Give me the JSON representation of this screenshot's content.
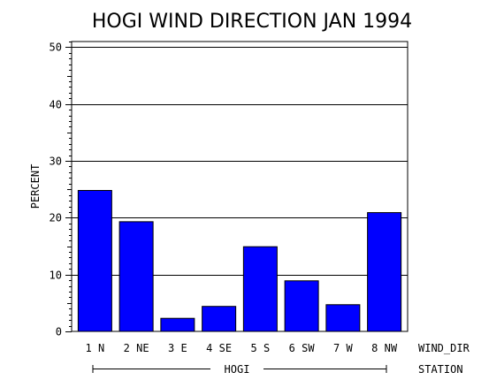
{
  "chart_data": {
    "type": "bar",
    "title": "HOGI WIND DIRECTION JAN 1994",
    "ylabel": "PERCENT",
    "xlabel": "WIND_DIR",
    "group_label": "HOGI",
    "group_axis_label": "STATION",
    "categories": [
      "1 N",
      "2 NE",
      "3 E",
      "4 SE",
      "5 S",
      "6 SW",
      "7 W",
      "8 NW"
    ],
    "values": [
      24.8,
      19.3,
      2.3,
      4.4,
      14.9,
      8.9,
      4.7,
      20.9
    ],
    "ylim": [
      0,
      51
    ],
    "yticks": [
      "0",
      "10",
      "20",
      "30",
      "40",
      "50"
    ],
    "grid": true,
    "bar_color": "#0000ff"
  }
}
